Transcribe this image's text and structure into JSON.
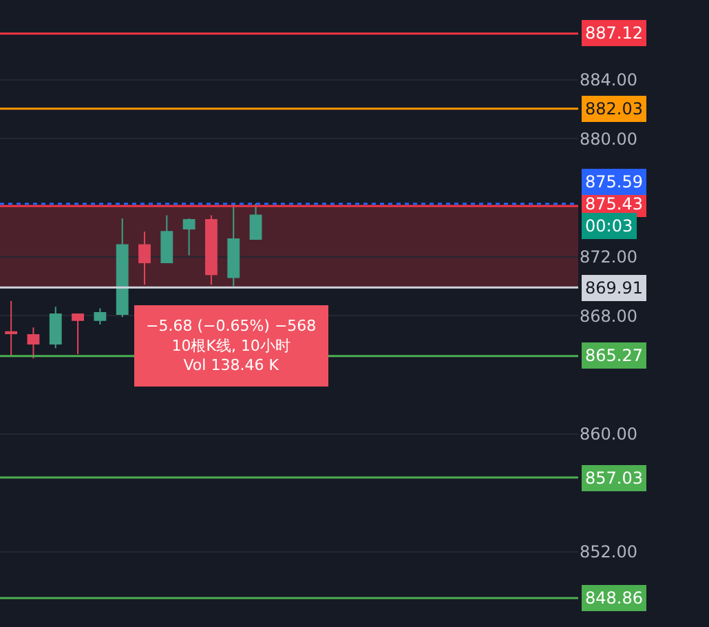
{
  "chart_data": {
    "type": "candlestick",
    "categories": [
      null,
      null,
      null,
      null,
      null,
      null,
      null,
      null,
      null,
      null,
      null,
      null,
      null,
      null,
      null,
      null,
      null,
      null,
      null,
      null,
      null,
      null,
      null,
      null,
      null,
      null
    ],
    "ohlc": [
      [
        866.9,
        869.0,
        865.3,
        866.8
      ],
      [
        866.7,
        867.2,
        865.1,
        866.1
      ],
      [
        866.1,
        868.6,
        865.8,
        868.1
      ],
      [
        868.1,
        868.1,
        865.4,
        867.7
      ],
      [
        867.7,
        868.5,
        867.4,
        868.2
      ],
      [
        868.1,
        874.6,
        867.9,
        872.8
      ],
      [
        872.8,
        873.7,
        870.1,
        871.6
      ],
      [
        871.6,
        874.8,
        871.6,
        873.7
      ],
      [
        873.9,
        874.6,
        872.1,
        874.5
      ],
      [
        874.5,
        874.8,
        870.1,
        870.8
      ],
      [
        870.6,
        875.6,
        870.0,
        873.2
      ],
      [
        873.2,
        875.6,
        873.2,
        874.8
      ],
      null,
      null,
      null,
      null,
      null,
      null,
      null,
      null,
      null,
      null,
      null,
      null,
      null,
      null
    ],
    "colors": [
      "#e0455b",
      "#e0455b",
      "#3d9f86",
      "#e0455b",
      "#3d9f86",
      "#3d9f86",
      "#e0455b",
      "#3d9f86",
      "#3d9f86",
      "#e0455b",
      "#3d9f86",
      "#3d9f86",
      null,
      null,
      null,
      null,
      null,
      null,
      null,
      null,
      null,
      null,
      null,
      null,
      null,
      null
    ],
    "ylim": [
      846.9,
      889.4
    ],
    "yticks": [
      {
        "value": 884,
        "label": "884.00"
      },
      {
        "value": 880,
        "label": "880.00"
      },
      {
        "value": 872,
        "label": "872.00"
      },
      {
        "value": 868,
        "label": "868.00"
      },
      {
        "value": 860,
        "label": "860.00"
      },
      {
        "value": 852,
        "label": "852.00"
      }
    ],
    "tick_labels": "y",
    "grid": "y",
    "ref_lines": [
      {
        "axis": "y",
        "value": 887.12,
        "label": "887.12",
        "color": "#f23645"
      },
      {
        "axis": "y",
        "value": 882.03,
        "label": "882.03",
        "color": "#ff9800"
      },
      {
        "axis": "y",
        "value": 875.43,
        "label": "875.43",
        "color": "#f23645"
      },
      {
        "axis": "y",
        "value": 875.59,
        "label": "875.59",
        "color": "#2962ff",
        "line_style": "dotted"
      },
      {
        "axis": "y",
        "value": 869.91,
        "label": "869.91",
        "color": "#d1d4dc"
      },
      {
        "axis": "y",
        "value": 865.27,
        "label": "865.27",
        "color": "#4caf50"
      },
      {
        "axis": "y",
        "value": 857.03,
        "label": "857.03",
        "color": "#4caf50"
      },
      {
        "axis": "y",
        "value": 848.86,
        "label": "848.86",
        "color": "#4caf50"
      }
    ],
    "bands": [
      {
        "axis": "y",
        "from": 869.91,
        "to": 875.43,
        "color": "#f23645"
      }
    ],
    "annotations": [
      "−5.68 (−0.65%) −568",
      "10根K线, 10小时",
      "Vol 138.46 K",
      "00:03"
    ]
  }
}
